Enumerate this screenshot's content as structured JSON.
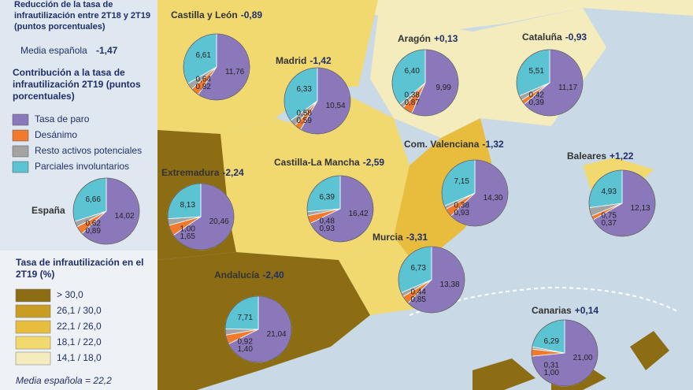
{
  "header": {
    "title": "Reducción de la tasa de infrautilización entre 2T18 y 2T19 (puntos porcentuales)",
    "average_label": "Media española",
    "average_value": "-1,47"
  },
  "pie_legend": {
    "title": "Contribución a la tasa de infrautilización 2T19 (puntos porcentuales)",
    "items": [
      {
        "name": "Tasa de paro",
        "color": "#8b78bb"
      },
      {
        "name": "Desánimo",
        "color": "#f07b2e"
      },
      {
        "name": "Resto activos potenciales",
        "color": "#a3a3a3"
      },
      {
        "name": "Parciales involuntarios",
        "color": "#5cc3d3"
      }
    ]
  },
  "map_legend": {
    "title": "Tasa de infrautilización en el 2T19 (%)",
    "items": [
      {
        "label": "> 30,0",
        "color": "#8c6d14"
      },
      {
        "label": "26,1 / 30,0",
        "color": "#c99c22"
      },
      {
        "label": "22,1 / 26,0",
        "color": "#e8bd3e"
      },
      {
        "label": "18,1 / 22,0",
        "color": "#f1d96f"
      },
      {
        "label": "14,1 / 18,0",
        "color": "#f4ecbd"
      }
    ],
    "note": "Media española = 22,2"
  },
  "regions": [
    {
      "name": "Castilla y León",
      "change": "-0,89",
      "pie": {
        "values": [
          11.76,
          0.82,
          0.64,
          6.61
        ],
        "value_labels": [
          "11,76",
          "0,82",
          "0,64",
          "6,61"
        ]
      }
    },
    {
      "name": "Madrid",
      "change": "-1,42",
      "pie": {
        "values": [
          10.54,
          0.59,
          0.58,
          6.33
        ],
        "value_labels": [
          "10,54",
          "0,59",
          "0,58",
          "6,33"
        ]
      }
    },
    {
      "name": "Aragón",
      "change": "+0,13",
      "pie": {
        "values": [
          9.99,
          0.87,
          0.38,
          6.4
        ],
        "value_labels": [
          "9,99",
          "0,87",
          "0,38",
          "6,40"
        ]
      }
    },
    {
      "name": "Cataluña",
      "change": "-0,93",
      "pie": {
        "values": [
          11.17,
          0.39,
          0.42,
          5.51
        ],
        "value_labels": [
          "11,17",
          "0,39",
          "0,42",
          "5,51"
        ]
      }
    },
    {
      "name": "Extremadura",
      "change": "-2,24",
      "pie": {
        "values": [
          20.46,
          1.65,
          1.0,
          8.13
        ],
        "value_labels": [
          "20,46",
          "1,65",
          "1,00",
          "8,13"
        ]
      }
    },
    {
      "name": "Castilla-La Mancha",
      "change": "-2,59",
      "pie": {
        "values": [
          16.42,
          0.93,
          0.48,
          6.39
        ],
        "value_labels": [
          "16,42",
          "0,93",
          "0,48",
          "6,39"
        ]
      }
    },
    {
      "name": "Com. Valenciana",
      "change": "-1,32",
      "pie": {
        "values": [
          14.3,
          0.93,
          0.38,
          7.15
        ],
        "value_labels": [
          "14,30",
          "0,93",
          "0,38",
          "7,15"
        ]
      }
    },
    {
      "name": "Baleares",
      "change": "+1,22",
      "pie": {
        "values": [
          12.13,
          0.37,
          0.75,
          4.93
        ],
        "value_labels": [
          "12,13",
          "0,37",
          "0,75",
          "4,93"
        ]
      }
    },
    {
      "name": "Murcia",
      "change": "-3,31",
      "pie": {
        "values": [
          13.38,
          0.85,
          0.44,
          6.73
        ],
        "value_labels": [
          "13,38",
          "0,85",
          "0,44",
          "6,73"
        ]
      }
    },
    {
      "name": "Andalucía",
      "change": "-2,40",
      "pie": {
        "values": [
          21.04,
          1.4,
          0.92,
          7.71
        ],
        "value_labels": [
          "21,04",
          "1,40",
          "0,92",
          "7,71"
        ]
      }
    },
    {
      "name": "Canarias",
      "change": "+0,14",
      "pie": {
        "values": [
          21.0,
          1.0,
          0.31,
          6.29
        ],
        "value_labels": [
          "21,00",
          "1,00",
          "0,31",
          "6,29"
        ]
      }
    },
    {
      "name": "España",
      "pie": {
        "values": [
          14.02,
          0.89,
          0.62,
          6.66
        ],
        "value_labels": [
          "14,02",
          "0,89",
          "0,62",
          "6,66"
        ]
      }
    }
  ]
}
